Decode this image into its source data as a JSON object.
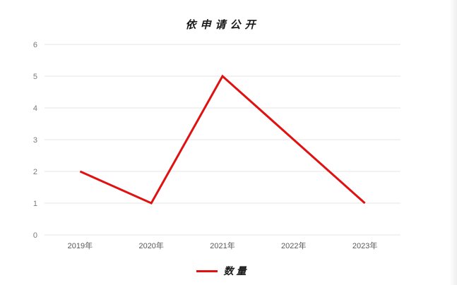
{
  "chart_data": {
    "type": "line",
    "title": "依申请公开",
    "categories": [
      "2019年",
      "2020年",
      "2021年",
      "2022年",
      "2023年"
    ],
    "series": [
      {
        "name": "数量",
        "values": [
          2,
          1,
          5,
          3,
          1
        ],
        "color": "#e01111"
      }
    ],
    "ylim": [
      0,
      6
    ],
    "ytick_step": 1,
    "grid": "horizontal-light",
    "legend_position": "bottom",
    "markers": "none"
  },
  "colors": {
    "line": "#e01111",
    "grid": "#e4e4e4",
    "ytick_text": "#7a7a7a",
    "xtick_text": "#595959",
    "title_text": "#1a1a1a",
    "background": "#ffffff"
  }
}
